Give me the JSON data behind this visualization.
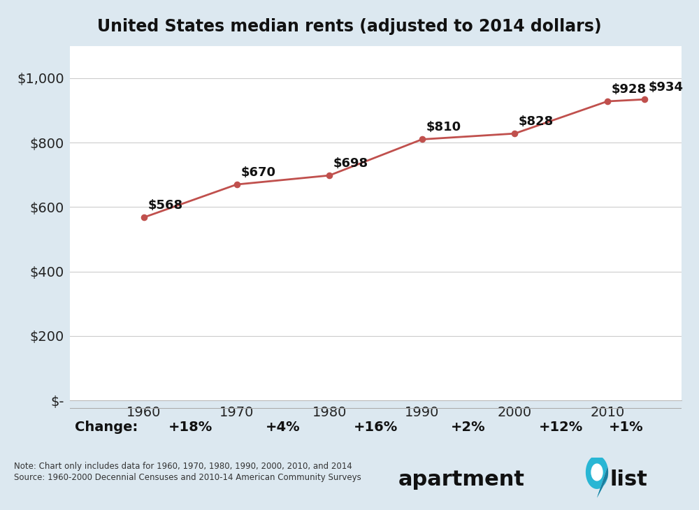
{
  "title": "United States median rents (adjusted to 2014 dollars)",
  "years": [
    1960,
    1970,
    1980,
    1990,
    2000,
    2010,
    2014
  ],
  "values": [
    568,
    670,
    698,
    810,
    828,
    928,
    934
  ],
  "line_color": "#c0504d",
  "marker_color": "#c0504d",
  "bg_color": "#dce8f0",
  "plot_bg_color": "#ffffff",
  "change_bg_color": "#dce8f0",
  "yticks": [
    0,
    200,
    400,
    600,
    800,
    1000
  ],
  "ytick_labels": [
    "$-",
    "$200",
    "$400",
    "$600",
    "$800",
    "$1,000"
  ],
  "xtick_labels": [
    "1960",
    "1970",
    "1980",
    "1990",
    "2000",
    "2010"
  ],
  "decade_years": [
    1960,
    1970,
    1980,
    1990,
    2000,
    2010
  ],
  "change_labels": [
    "+18%",
    "+4%",
    "+16%",
    "+2%",
    "+12%",
    "+1%"
  ],
  "change_label": "Change:",
  "note_line1": "Note: Chart only includes data for 1960, 1970, 1980, 1990, 2000, 2010, and 2014",
  "note_line2": "Source: 1960-2000 Decennial Censuses and 2010-14 American Community Surveys",
  "data_labels": [
    "$568",
    "$670",
    "$698",
    "$810",
    "$828",
    "$928",
    "$934"
  ],
  "title_fontsize": 17,
  "tick_fontsize": 14,
  "label_fontsize": 13,
  "change_fontsize": 14,
  "xlim_min": 1952,
  "xlim_max": 2018,
  "ylim_min": 0,
  "ylim_max": 1100
}
